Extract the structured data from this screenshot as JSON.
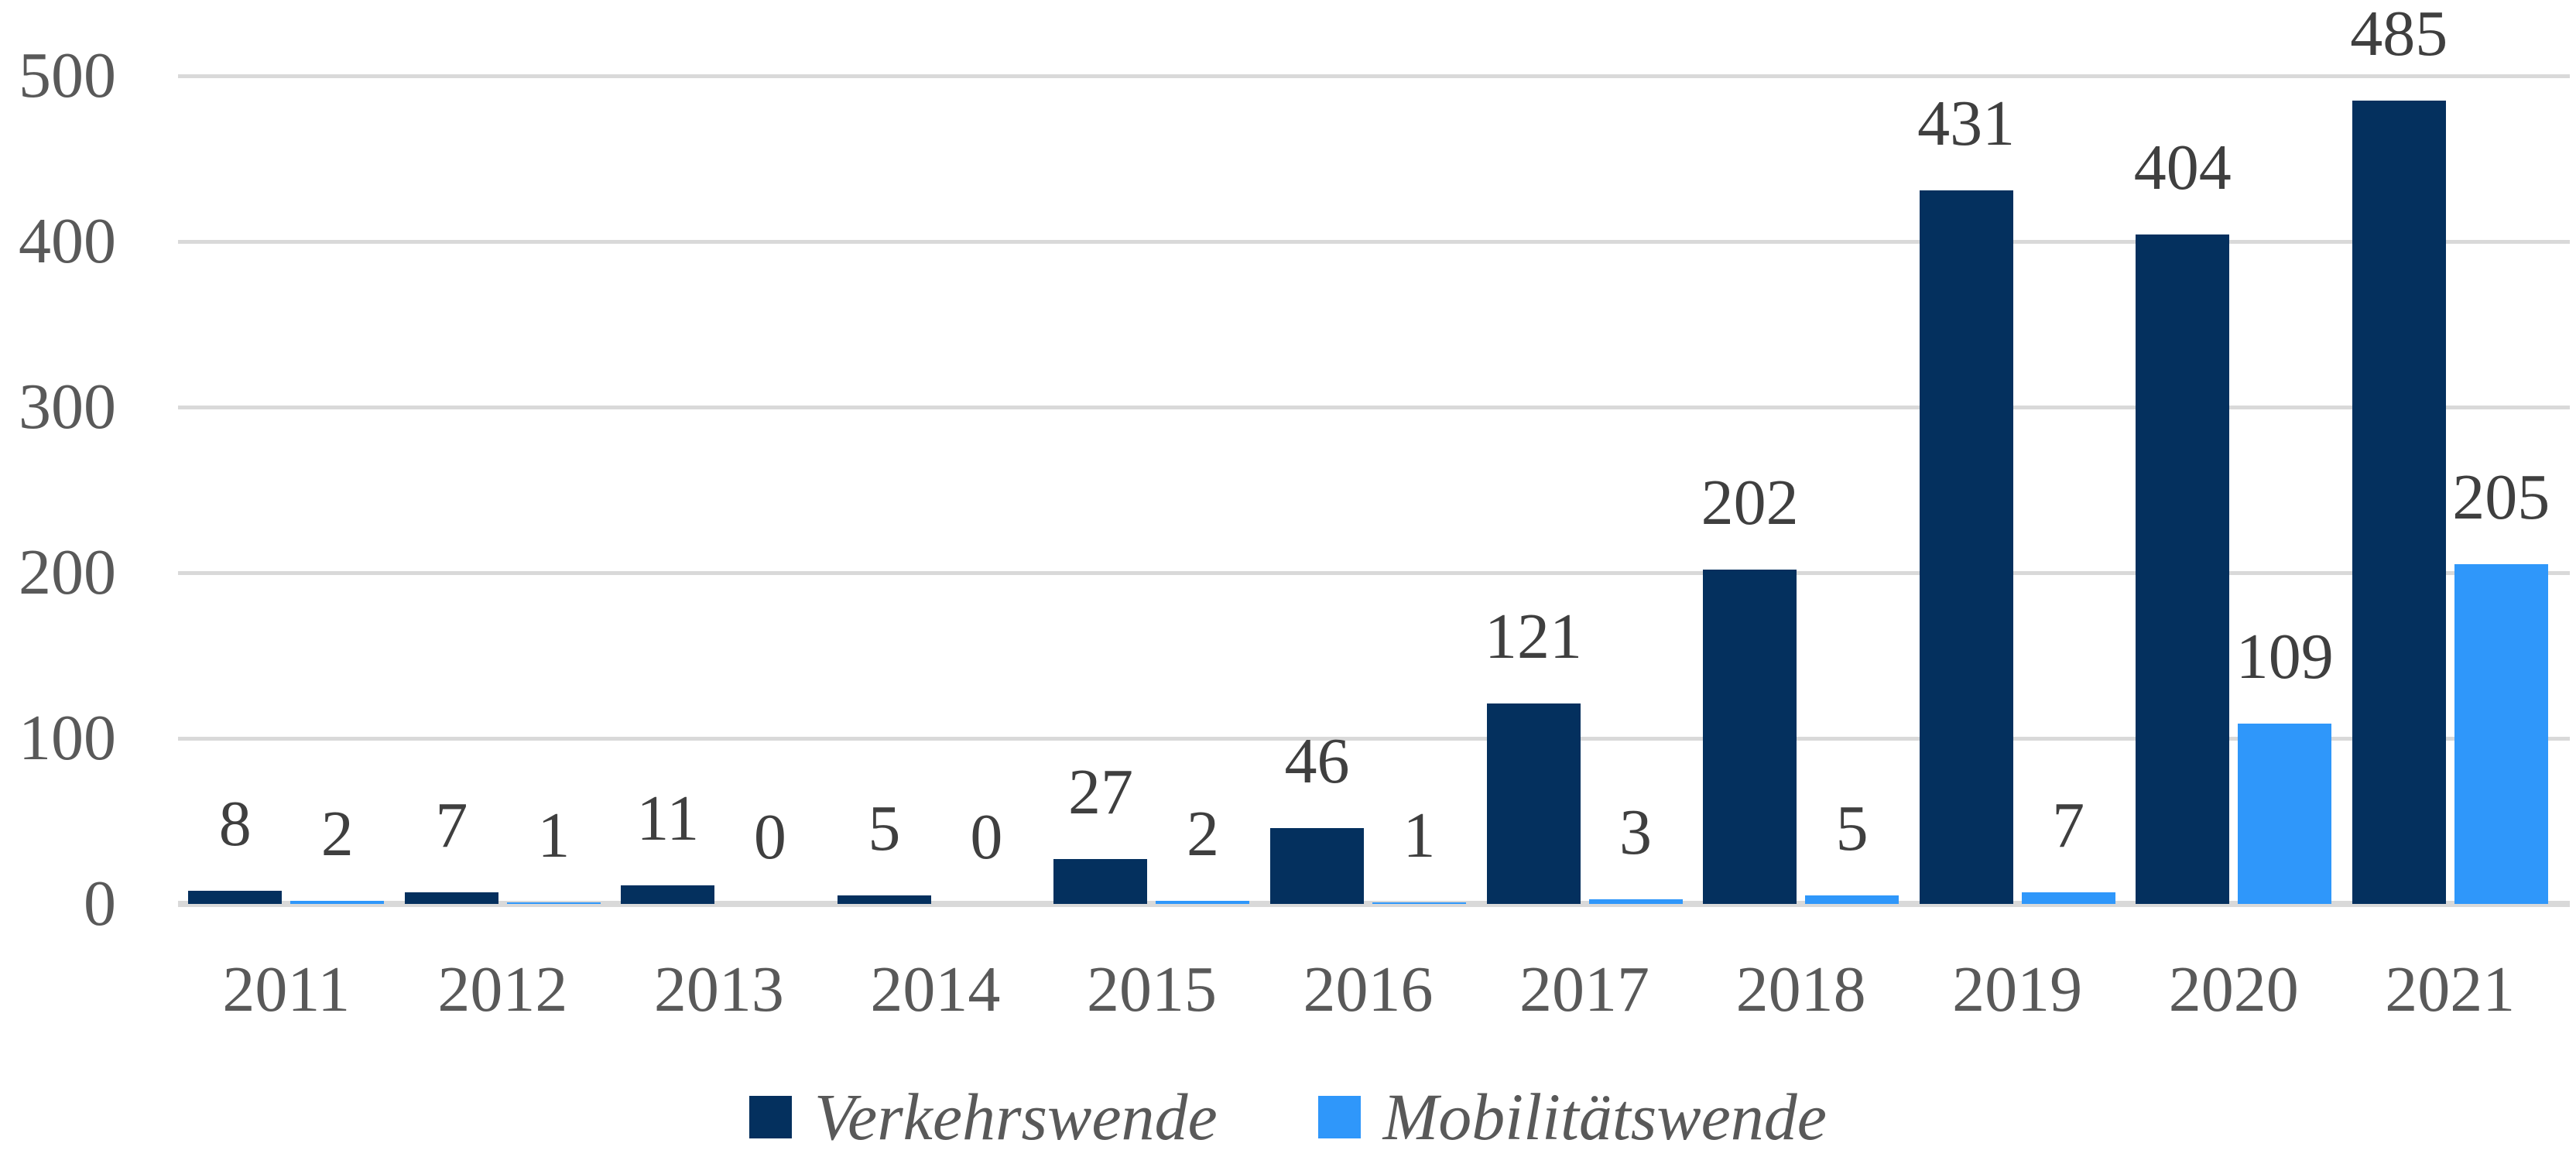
{
  "chart_data": {
    "type": "bar",
    "title": "",
    "categories": [
      "2011",
      "2012",
      "2013",
      "2014",
      "2015",
      "2016",
      "2017",
      "2018",
      "2019",
      "2020",
      "2021"
    ],
    "series": [
      {
        "name": "Verkehrswende",
        "color": "#04305E",
        "values": [
          8,
          7,
          11,
          5,
          27,
          46,
          121,
          202,
          431,
          404,
          485
        ]
      },
      {
        "name": "Mobilitätswende",
        "color": "#2F97FA",
        "values": [
          2,
          1,
          0,
          0,
          2,
          1,
          3,
          5,
          7,
          109,
          205
        ]
      }
    ],
    "ylim": [
      0,
      500
    ],
    "yticks": [
      0,
      100,
      200,
      300,
      400,
      500
    ],
    "grid": true,
    "gridline_color": "#D9D9D9",
    "axis_text_color": "#595959",
    "data_label_color": "#3F3F3F",
    "legend_position": "bottom"
  }
}
